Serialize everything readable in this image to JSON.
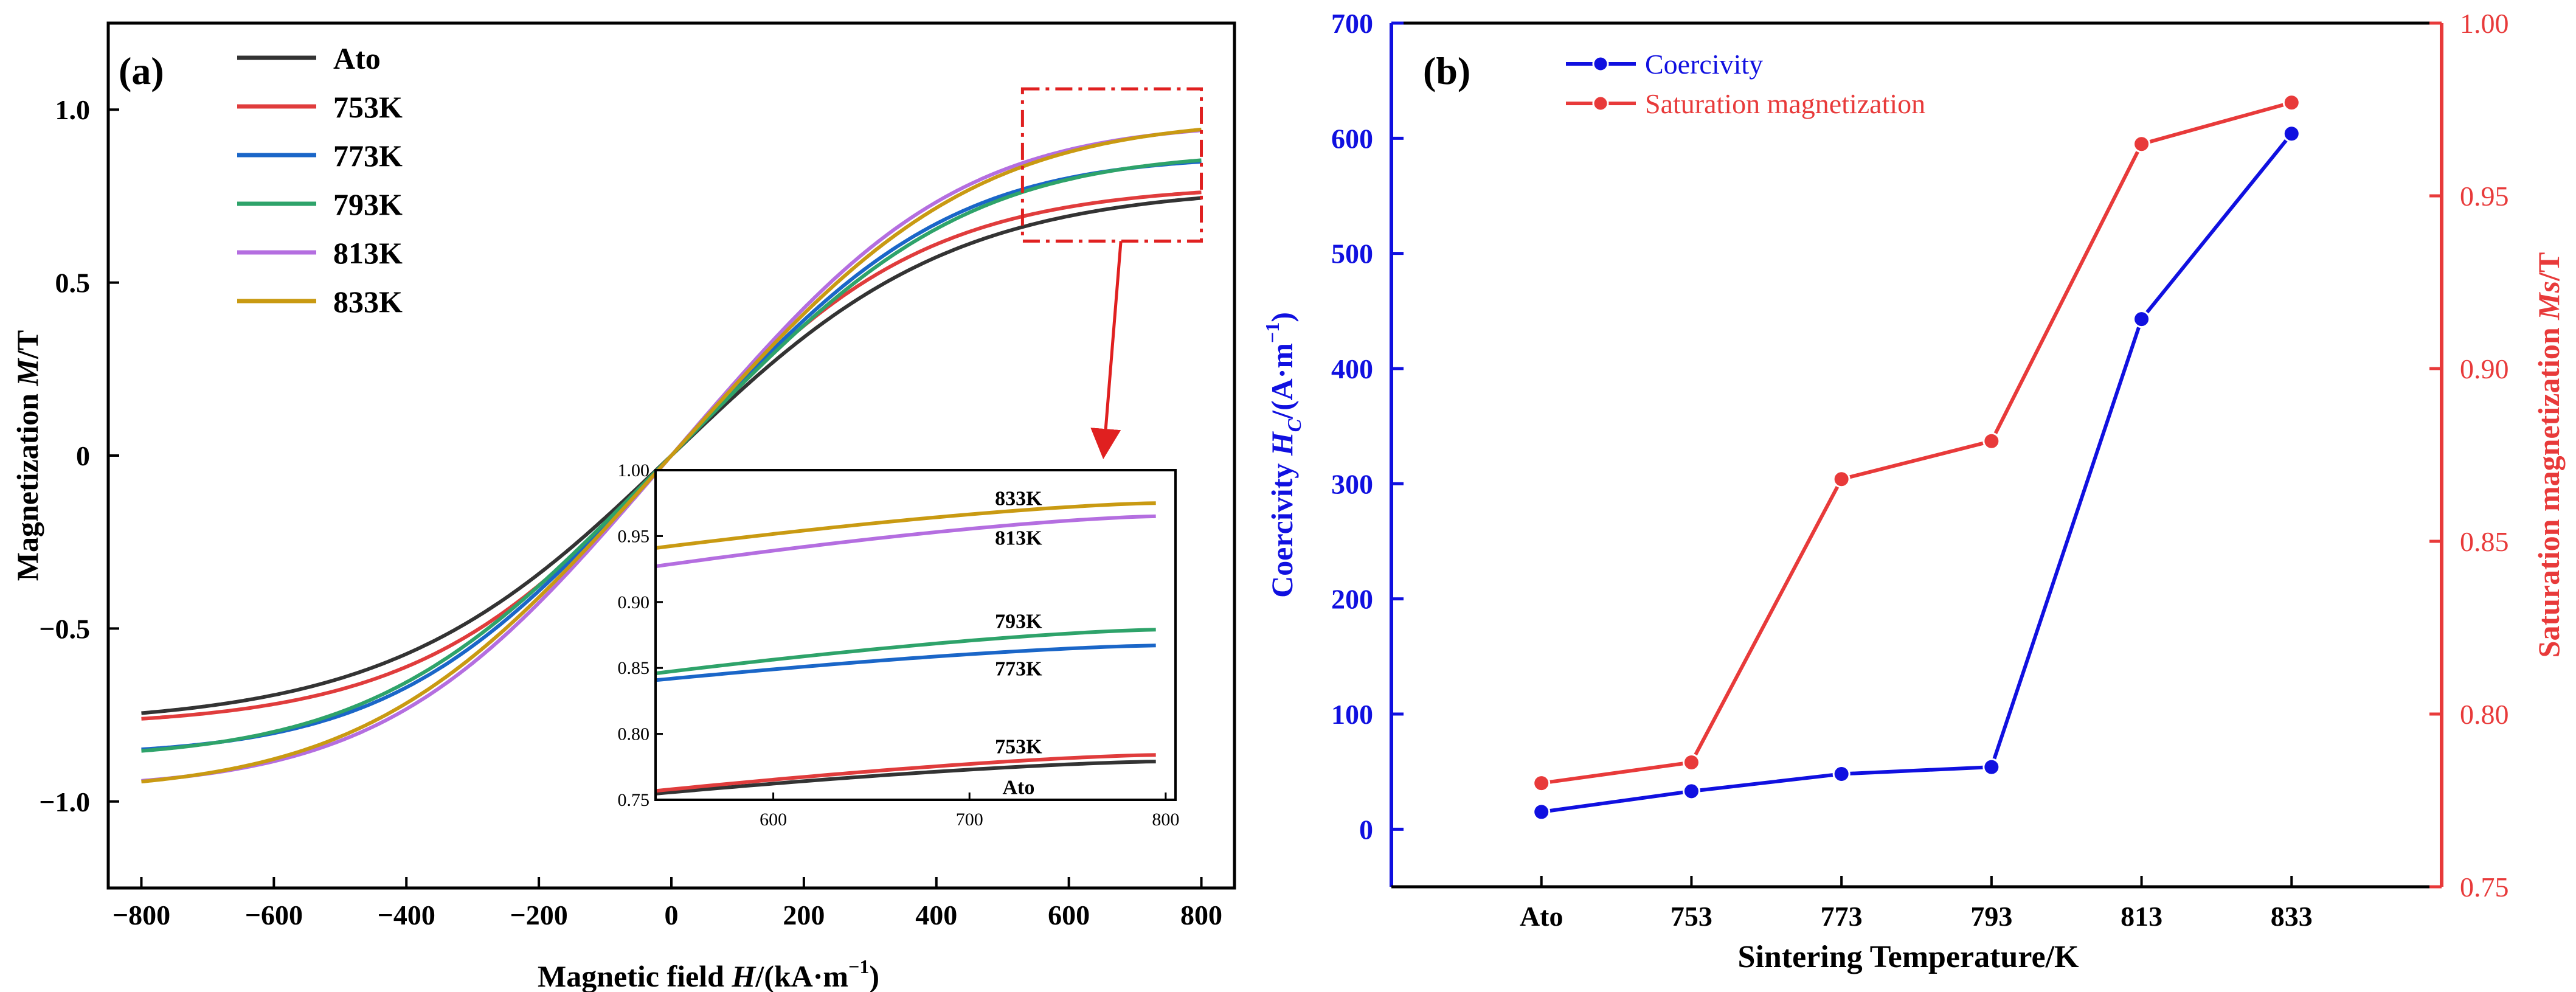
{
  "chart_data": [
    {
      "panel_label": "(a)",
      "type": "line",
      "xlabel": "Magnetic field H/(kA·m⁻¹)",
      "xlabel_parts": [
        "Magnetic field ",
        "H",
        "/(kA·m",
        "−1",
        ")"
      ],
      "ylabel": "Magnetization M/T",
      "ylabel_parts": [
        "Magnetization ",
        "M",
        "/T"
      ],
      "xlim": [
        -850,
        850
      ],
      "ylim": [
        -1.25,
        1.25
      ],
      "xticks": [
        -800,
        -600,
        -400,
        -200,
        0,
        200,
        400,
        600,
        800
      ],
      "xtick_labels": [
        "−800",
        "−600",
        "−400",
        "−200",
        "0",
        "200",
        "400",
        "600",
        "800"
      ],
      "yticks": [
        -1.0,
        -0.5,
        0,
        0.5,
        1.0
      ],
      "ytick_labels": [
        "−1.0",
        "−0.5",
        "0",
        "0.5",
        "1.0"
      ],
      "x_range": [
        -800,
        800
      ],
      "series": [
        {
          "name": "Ato",
          "color": "#333333",
          "Ms": 0.78,
          "chi": 0.00235,
          "shape": 1.0
        },
        {
          "name": "753K",
          "color": "#e03c3c",
          "Ms": 0.785,
          "chi": 0.0026,
          "shape": 1.0
        },
        {
          "name": "773K",
          "color": "#1a66c8",
          "Ms": 0.868,
          "chi": 0.00235,
          "shape": 1.22
        },
        {
          "name": "793K",
          "color": "#2ea36a",
          "Ms": 0.879,
          "chi": 0.00222,
          "shape": 1.22
        },
        {
          "name": "813K",
          "color": "#b46ee0",
          "Ms": 0.965,
          "chi": 0.0023,
          "shape": 1.2
        },
        {
          "name": "833K",
          "color": "#c99a12",
          "Ms": 0.975,
          "chi": 0.00218,
          "shape": 1.2
        }
      ],
      "zoom_box": {
        "x": [
          530,
          800
        ],
        "y": [
          0.62,
          1.06
        ]
      },
      "inset": {
        "xlim": [
          540,
          805
        ],
        "ylim": [
          0.75,
          1.0
        ],
        "xticks": [
          600,
          700,
          800
        ],
        "xtick_labels": [
          "600",
          "700",
          "800"
        ],
        "yticks": [
          0.75,
          0.8,
          0.85,
          0.9,
          0.95,
          1.0
        ],
        "ytick_labels": [
          "0.75",
          "0.80",
          "0.85",
          "0.90",
          "0.95",
          "1.00"
        ],
        "series": [
          {
            "name": "Ato",
            "color": "#333333",
            "y0": 0.754,
            "y1": 0.779
          },
          {
            "name": "753K",
            "color": "#e03c3c",
            "y0": 0.756,
            "y1": 0.784
          },
          {
            "name": "773K",
            "color": "#1a66c8",
            "y0": 0.84,
            "y1": 0.867
          },
          {
            "name": "793K",
            "color": "#2ea36a",
            "y0": 0.845,
            "y1": 0.879
          },
          {
            "name": "813K",
            "color": "#b46ee0",
            "y0": 0.926,
            "y1": 0.965
          },
          {
            "name": "833K",
            "color": "#c99a12",
            "y0": 0.94,
            "y1": 0.975
          }
        ],
        "labels": [
          {
            "text": "833K",
            "x": 725,
            "y": 0.978
          },
          {
            "text": "813K",
            "x": 725,
            "y": 0.948
          },
          {
            "text": "793K",
            "x": 725,
            "y": 0.885
          },
          {
            "text": "773K",
            "x": 725,
            "y": 0.849
          },
          {
            "text": "753K",
            "x": 725,
            "y": 0.79
          },
          {
            "text": "Ato",
            "x": 725,
            "y": 0.759
          }
        ]
      }
    },
    {
      "panel_label": "(b)",
      "type": "line",
      "categories": [
        "Ato",
        "753",
        "773",
        "793",
        "813",
        "833"
      ],
      "xlabel": "Sintering Temperature/K",
      "ylabel_left_parts": [
        "Coercivity ",
        "H",
        "C",
        "/(A·m",
        "−1",
        ")"
      ],
      "ylabel_right_parts": [
        "Saturation magnetization ",
        "Ms",
        "/T"
      ],
      "ylim_left": [
        -50,
        700
      ],
      "yticks_left": [
        0,
        100,
        200,
        300,
        400,
        500,
        600,
        700
      ],
      "ylim_right": [
        0.75,
        1.0
      ],
      "yticks_right": [
        0.75,
        0.8,
        0.85,
        0.9,
        0.95,
        1.0
      ],
      "ytick_labels_right": [
        "0.75",
        "0.80",
        "0.85",
        "0.90",
        "0.95",
        "1.00"
      ],
      "series": [
        {
          "name": "Coercivity",
          "axis": "left",
          "color": "#1010e0",
          "values": [
            15,
            33,
            48,
            54,
            443,
            604
          ]
        },
        {
          "name": "Saturation magnetization",
          "axis": "right",
          "color": "#e83a3a",
          "values": [
            0.78,
            0.786,
            0.868,
            0.879,
            0.965,
            0.977
          ]
        }
      ]
    }
  ]
}
